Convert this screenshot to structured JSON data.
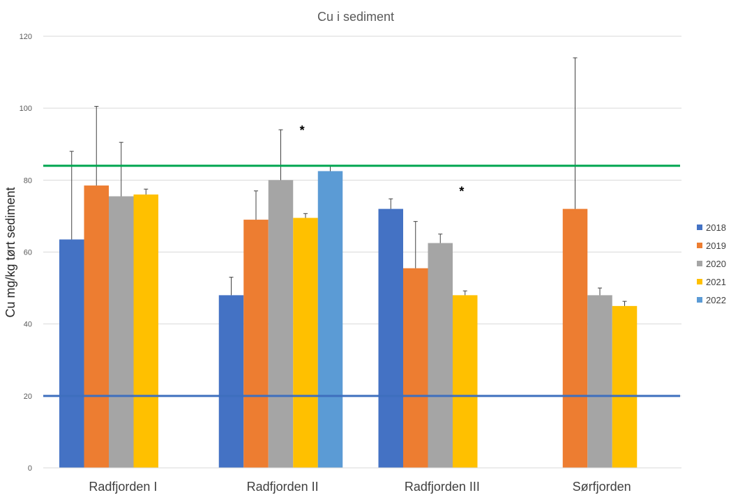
{
  "chart_data": {
    "type": "bar",
    "title": "Cu i sediment",
    "xlabel": "",
    "ylabel": "Cu mg/kg tørt sediment",
    "ylim": [
      0,
      120
    ],
    "yticks": [
      0,
      20,
      40,
      60,
      80,
      100,
      120
    ],
    "grid": true,
    "legend_position": "right",
    "categories": [
      "Radfjorden I",
      "Radfjorden II",
      "Radfjorden III",
      "Sørfjorden"
    ],
    "series": [
      {
        "name": "2018",
        "color": "#4472C4",
        "values": [
          63.5,
          48,
          72,
          null
        ],
        "errors": [
          24.5,
          5,
          2.8,
          null
        ]
      },
      {
        "name": "2019",
        "color": "#ED7D31",
        "values": [
          78.5,
          69,
          55.5,
          72
        ],
        "errors": [
          22,
          8,
          13,
          42
        ]
      },
      {
        "name": "2020",
        "color": "#A5A5A5",
        "values": [
          75.5,
          80,
          62.5,
          48
        ],
        "errors": [
          15,
          14,
          2.5,
          2
        ]
      },
      {
        "name": "2021",
        "color": "#FFC000",
        "values": [
          76,
          69.5,
          48,
          45
        ],
        "errors": [
          1.5,
          1.2,
          1.2,
          1.3
        ]
      },
      {
        "name": "2022",
        "color": "#5B9BD5",
        "values": [
          null,
          82.5,
          null,
          null
        ],
        "errors": [
          null,
          1.5,
          null,
          null
        ]
      }
    ],
    "reference_lines": [
      {
        "value": 84,
        "color": "#00A651"
      },
      {
        "value": 20,
        "color": "#3E6FBE"
      }
    ],
    "annotations": [
      {
        "text": "*",
        "category": "Radfjorden II",
        "value": 95
      },
      {
        "text": "*",
        "category": "Radfjorden III",
        "value": 78
      }
    ]
  }
}
